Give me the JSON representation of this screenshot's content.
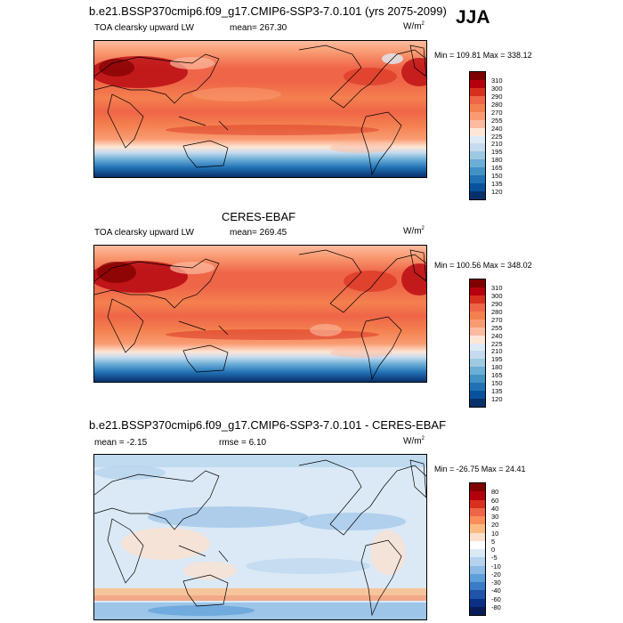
{
  "season": "JJA",
  "units_label": "W/m",
  "units_sup": "2",
  "panel1": {
    "title": "b.e21.BSSP370cmip6.f09_g17.CMIP6-SSP3-7.0.101 (yrs 2075-2099)",
    "variable": "TOA clearsky upward LW",
    "mean": "mean= 267.30",
    "minmax": "Min = 109.81 Max = 338.12",
    "levels": [
      "310",
      "300",
      "290",
      "280",
      "270",
      "255",
      "240",
      "225",
      "210",
      "195",
      "180",
      "165",
      "150",
      "135",
      "120"
    ]
  },
  "panel2": {
    "title": "CERES-EBAF",
    "variable": "TOA clearsky upward LW",
    "mean": "mean= 269.45",
    "minmax": "Min = 100.56 Max = 348.02",
    "levels": [
      "310",
      "300",
      "290",
      "280",
      "270",
      "255",
      "240",
      "225",
      "210",
      "195",
      "180",
      "165",
      "150",
      "135",
      "120"
    ]
  },
  "panel3": {
    "title": "b.e21.BSSP370cmip6.f09_g17.CMIP6-SSP3-7.0.101 - CERES-EBAF",
    "mean": "mean =  -2.15",
    "rmse": "rmse =   6.10",
    "minmax": "Min = -26.75 Max =  24.41",
    "levels": [
      "80",
      "60",
      "40",
      "30",
      "20",
      "10",
      "5",
      "0",
      "-5",
      "-10",
      "-20",
      "-30",
      "-40",
      "-60",
      "-80"
    ]
  },
  "colors": {
    "abs_scale": [
      "#7f0000",
      "#b3000c",
      "#d7301f",
      "#ef6548",
      "#f4804f",
      "#f99b72",
      "#fcbba1",
      "#fee6d6",
      "#deebf7",
      "#c6dbef",
      "#9ecae1",
      "#6baed6",
      "#4292c6",
      "#2171b5",
      "#08519c",
      "#08306b"
    ],
    "diff_scale": [
      "#7f0000",
      "#b3000c",
      "#d7301f",
      "#ef6548",
      "#fc8d59",
      "#fdbb84",
      "#fde0cc",
      "#ffffff",
      "#dbe9f6",
      "#b5d3ee",
      "#8dbbe5",
      "#5e9ed9",
      "#3b7cc7",
      "#1f54a8",
      "#0b2f85",
      "#081d58"
    ]
  }
}
